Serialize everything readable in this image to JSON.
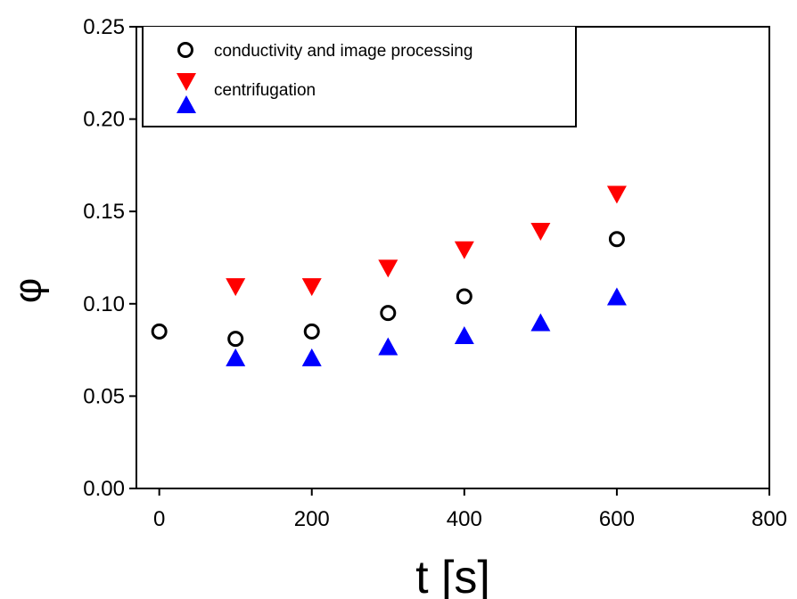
{
  "chart_data": {
    "type": "scatter",
    "title": "",
    "xlabel": "t [s]",
    "ylabel": "φ",
    "xlim": [
      -30,
      800
    ],
    "ylim": [
      0,
      0.25
    ],
    "xticks": [
      "0",
      "200",
      "400",
      "600",
      "800"
    ],
    "yticks": [
      "0.00",
      "0.05",
      "0.10",
      "0.15",
      "0.20",
      "0.25"
    ],
    "grid": false,
    "legend_position": "top-left",
    "series": [
      {
        "name": "conductivity and image processing",
        "marker": "open-circle",
        "color": "#000000",
        "x": [
          0,
          100,
          200,
          300,
          400,
          600
        ],
        "y": [
          0.085,
          0.081,
          0.085,
          0.095,
          0.104,
          0.135
        ]
      },
      {
        "name": "centrifugation",
        "marker": "triangle-down",
        "color": "#ff0000",
        "x": [
          100,
          200,
          300,
          400,
          500,
          600
        ],
        "y": [
          0.109,
          0.109,
          0.119,
          0.129,
          0.139,
          0.159
        ]
      },
      {
        "name": "",
        "marker": "triangle-up",
        "color": "#0000ff",
        "x": [
          100,
          200,
          300,
          400,
          500,
          600
        ],
        "y": [
          0.071,
          0.071,
          0.077,
          0.083,
          0.09,
          0.104
        ]
      }
    ]
  }
}
